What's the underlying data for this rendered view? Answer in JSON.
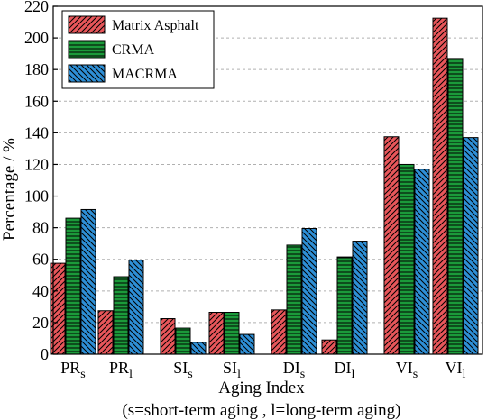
{
  "chart_data": {
    "type": "bar",
    "ylabel": "Percentage / %",
    "xlabel": "Aging Index",
    "xlabel_note": "(s=short-term aging , l=long-term aging)",
    "ylim": [
      0,
      220
    ],
    "yticks": [
      0,
      20,
      40,
      60,
      80,
      100,
      120,
      140,
      160,
      180,
      200,
      220
    ],
    "grid": true,
    "legend_position": "top-left",
    "categories": [
      {
        "base": "PR",
        "sub": "s"
      },
      {
        "base": "PR",
        "sub": "l"
      },
      {
        "base": "SI",
        "sub": "s"
      },
      {
        "base": "SI",
        "sub": "l"
      },
      {
        "base": "DI",
        "sub": "s"
      },
      {
        "base": "DI",
        "sub": "l"
      },
      {
        "base": "VI",
        "sub": "s"
      },
      {
        "base": "VI",
        "sub": "l"
      }
    ],
    "series": [
      {
        "name": "Matrix Asphalt",
        "color": "#e8565a",
        "pattern": "diagonal-up",
        "values": [
          57.5,
          27.5,
          22.5,
          26.5,
          28,
          9,
          137.5,
          212.5
        ]
      },
      {
        "name": "CRMA",
        "color": "#1b9a3a",
        "pattern": "horizontal",
        "values": [
          86,
          49,
          16.5,
          26.5,
          69,
          61.5,
          120,
          187
        ]
      },
      {
        "name": "MACRMA",
        "color": "#2e8fd6",
        "pattern": "diagonal-down",
        "values": [
          91.5,
          59.5,
          7.5,
          12.5,
          79.5,
          71.5,
          117,
          137
        ]
      }
    ]
  }
}
